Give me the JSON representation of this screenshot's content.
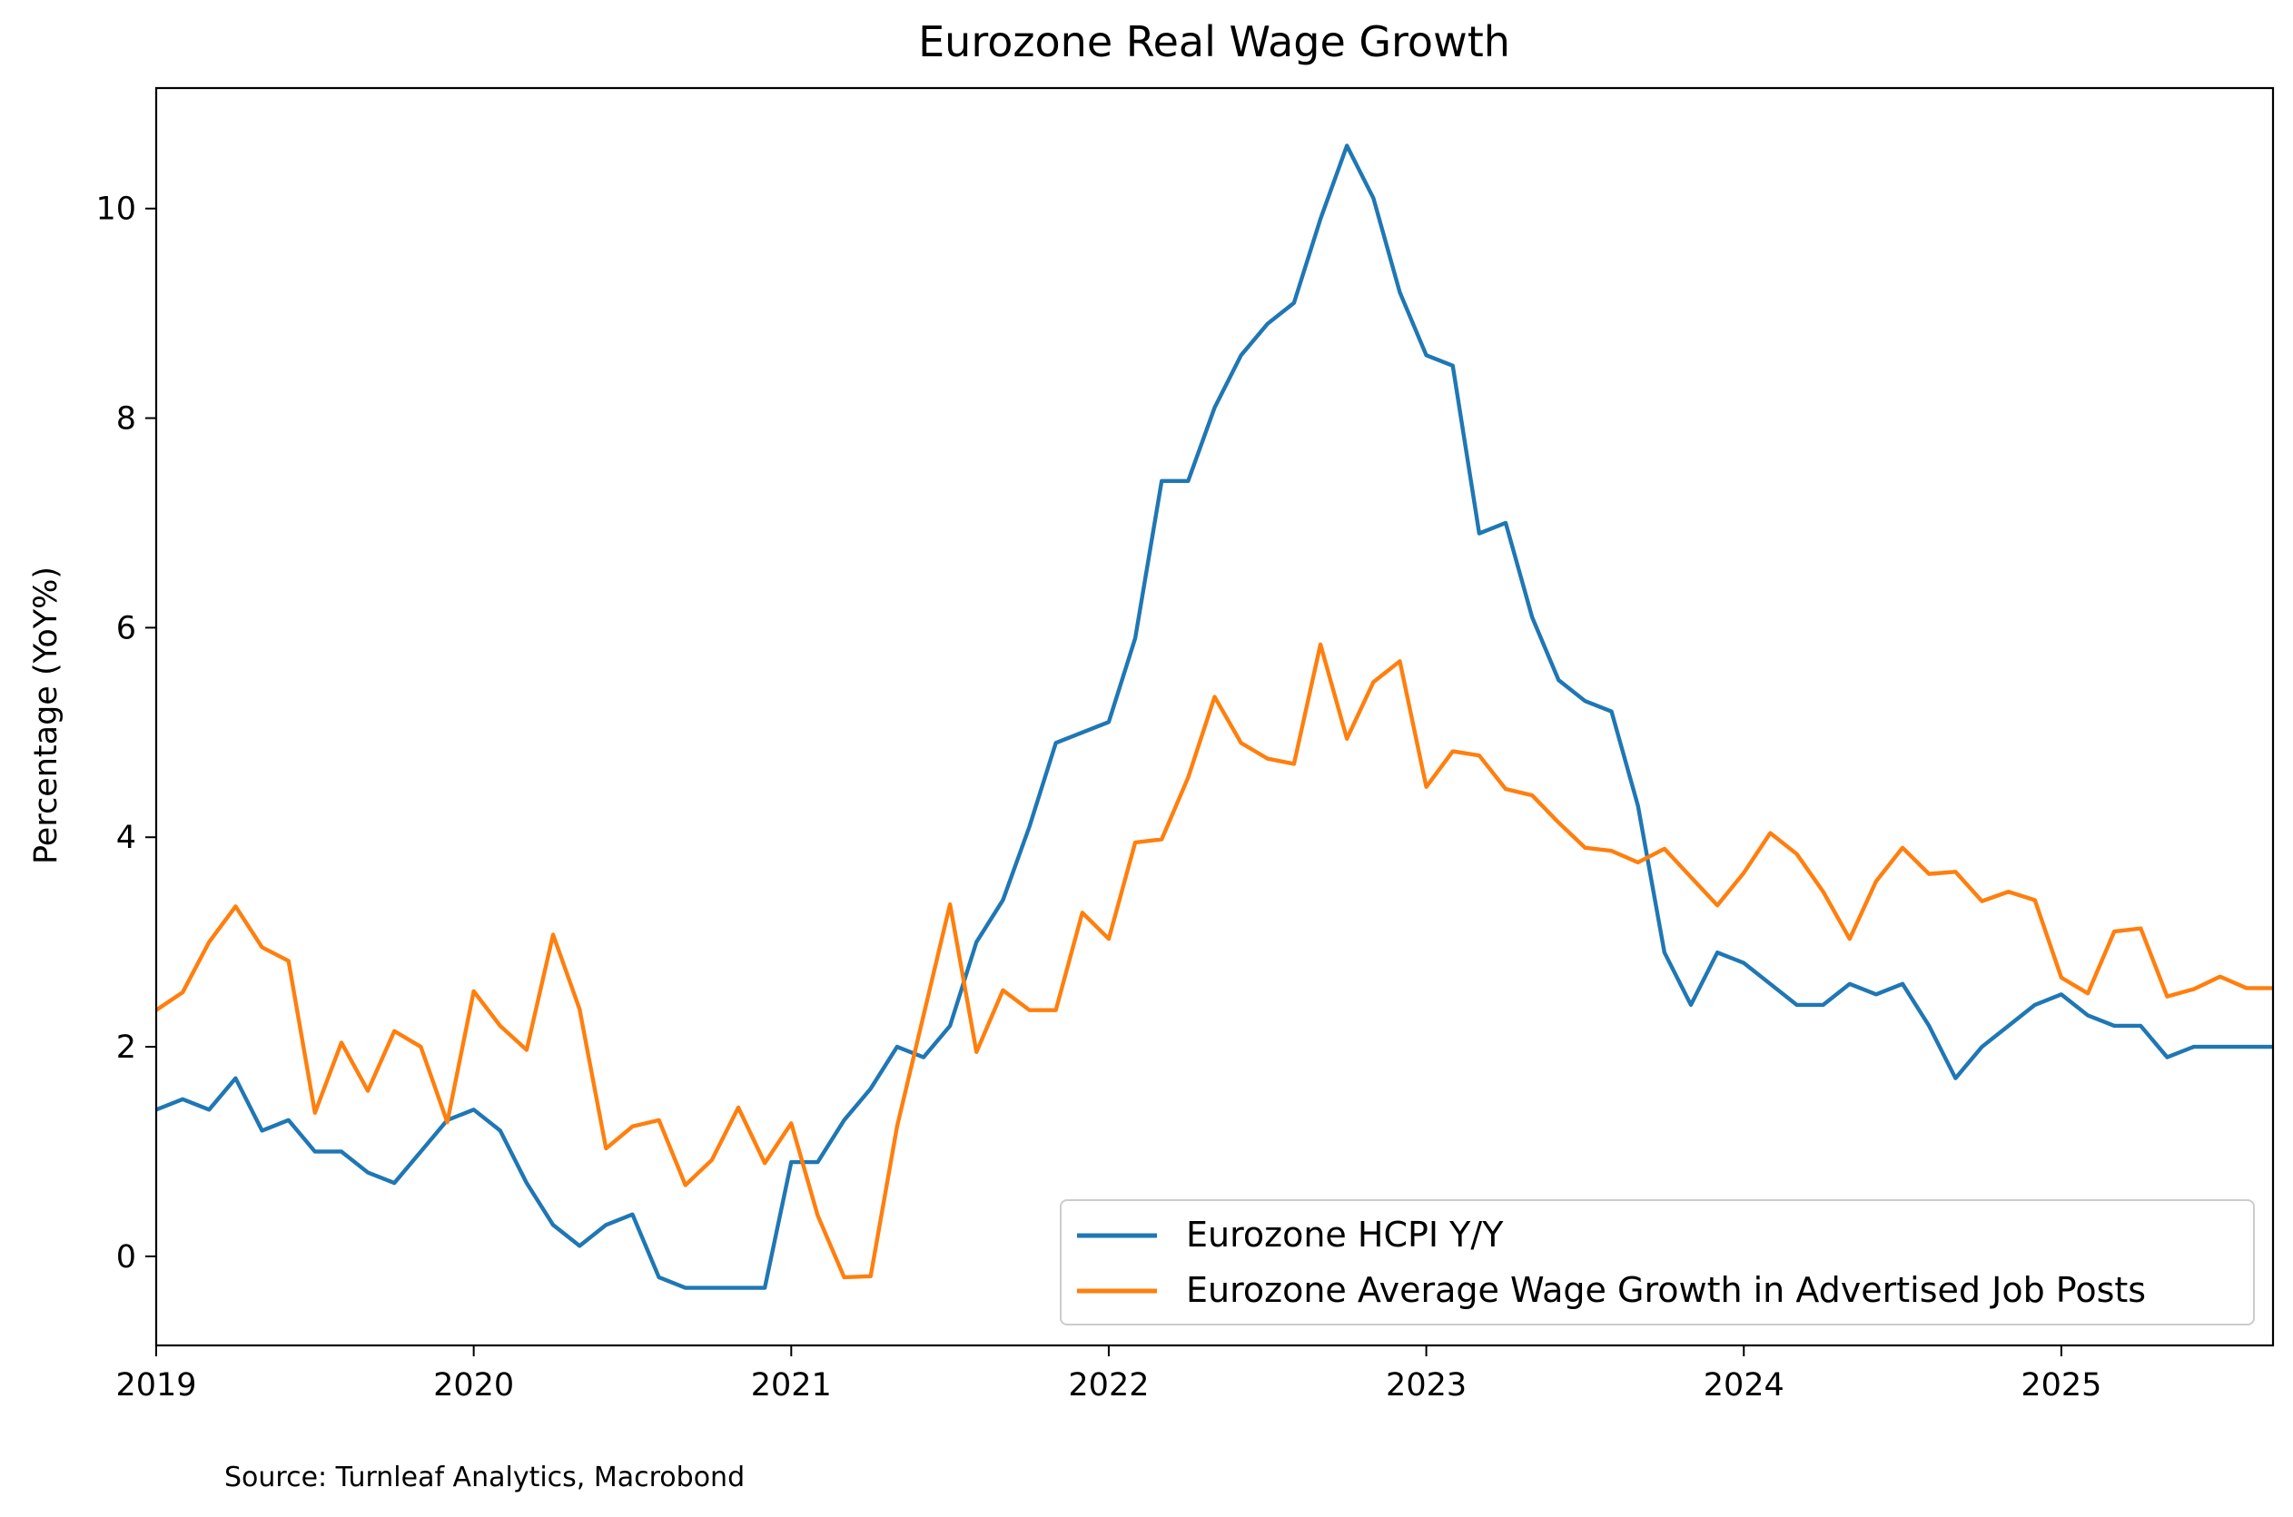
{
  "chart_data": {
    "type": "line",
    "title": "Eurozone Real Wage Growth",
    "xlabel": "",
    "ylabel": "Percentage (YoY%)",
    "xlim": [
      "2019-01-01",
      "2025-09-01"
    ],
    "ylim": [
      -0.85,
      11.15
    ],
    "x_ticks": [
      "2019",
      "2020",
      "2021",
      "2022",
      "2023",
      "2024",
      "2025"
    ],
    "y_ticks": [
      "0",
      "2",
      "4",
      "6",
      "8",
      "10"
    ],
    "y_tick_values": [
      0,
      2,
      4,
      6,
      8,
      10
    ],
    "grid": false,
    "legend_position": "lower right",
    "source": "Source: Turnleaf Analytics, Macrobond",
    "series": [
      {
        "name": "Eurozone HCPI Y/Y",
        "color": "#1f77b4",
        "x": [
          "2019-01",
          "2019-02",
          "2019-03",
          "2019-04",
          "2019-05",
          "2019-06",
          "2019-07",
          "2019-08",
          "2019-09",
          "2019-10",
          "2019-11",
          "2019-12",
          "2020-01",
          "2020-02",
          "2020-03",
          "2020-04",
          "2020-05",
          "2020-06",
          "2020-07",
          "2020-08",
          "2020-09",
          "2020-10",
          "2020-11",
          "2020-12",
          "2021-01",
          "2021-02",
          "2021-03",
          "2021-04",
          "2021-05",
          "2021-06",
          "2021-07",
          "2021-08",
          "2021-09",
          "2021-10",
          "2021-11",
          "2021-12",
          "2022-01",
          "2022-02",
          "2022-03",
          "2022-04",
          "2022-05",
          "2022-06",
          "2022-07",
          "2022-08",
          "2022-09",
          "2022-10",
          "2022-11",
          "2022-12",
          "2023-01",
          "2023-02",
          "2023-03",
          "2023-04",
          "2023-05",
          "2023-06",
          "2023-07",
          "2023-08",
          "2023-09",
          "2023-10",
          "2023-11",
          "2023-12",
          "2024-01",
          "2024-02",
          "2024-03",
          "2024-04",
          "2024-05",
          "2024-06",
          "2024-07",
          "2024-08",
          "2024-09",
          "2024-10",
          "2024-11",
          "2024-12",
          "2025-01",
          "2025-02",
          "2025-03",
          "2025-04",
          "2025-05",
          "2025-06",
          "2025-07",
          "2025-08",
          "2025-09"
        ],
        "values": [
          1.4,
          1.5,
          1.4,
          1.7,
          1.2,
          1.3,
          1.0,
          1.0,
          0.8,
          0.7,
          1.0,
          1.3,
          1.4,
          1.2,
          0.7,
          0.3,
          0.1,
          0.3,
          0.4,
          -0.2,
          -0.3,
          -0.3,
          -0.3,
          -0.3,
          0.9,
          0.9,
          1.3,
          1.6,
          2.0,
          1.9,
          2.2,
          3.0,
          3.4,
          4.1,
          4.9,
          5.0,
          5.1,
          5.9,
          7.4,
          7.4,
          8.1,
          8.6,
          8.9,
          9.1,
          9.9,
          10.6,
          10.1,
          9.2,
          8.6,
          8.5,
          6.9,
          7.0,
          6.1,
          5.5,
          5.3,
          5.2,
          4.3,
          2.9,
          2.4,
          2.9,
          2.8,
          2.6,
          2.4,
          2.4,
          2.6,
          2.5,
          2.6,
          2.2,
          1.7,
          2.0,
          2.2,
          2.4,
          2.5,
          2.3,
          2.2,
          2.2,
          1.9,
          2.0,
          2.0,
          2.0,
          2.0
        ]
      },
      {
        "name": "Eurozone Average Wage Growth in Advertised Job Posts",
        "color": "#ff7f0e",
        "x": [
          "2019-01",
          "2019-02",
          "2019-03",
          "2019-04",
          "2019-05",
          "2019-06",
          "2019-07",
          "2019-08",
          "2019-09",
          "2019-10",
          "2019-11",
          "2019-12",
          "2020-01",
          "2020-02",
          "2020-03",
          "2020-04",
          "2020-05",
          "2020-06",
          "2020-07",
          "2020-08",
          "2020-09",
          "2020-10",
          "2020-11",
          "2020-12",
          "2021-01",
          "2021-02",
          "2021-03",
          "2021-04",
          "2021-05",
          "2021-06",
          "2021-07",
          "2021-08",
          "2021-09",
          "2021-10",
          "2021-11",
          "2021-12",
          "2022-01",
          "2022-02",
          "2022-03",
          "2022-04",
          "2022-05",
          "2022-06",
          "2022-07",
          "2022-08",
          "2022-09",
          "2022-10",
          "2022-11",
          "2022-12",
          "2023-01",
          "2023-02",
          "2023-03",
          "2023-04",
          "2023-05",
          "2023-06",
          "2023-07",
          "2023-08",
          "2023-09",
          "2023-10",
          "2023-11",
          "2023-12",
          "2024-01",
          "2024-02",
          "2024-03",
          "2024-04",
          "2024-05",
          "2024-06",
          "2024-07",
          "2024-08",
          "2024-09",
          "2024-10",
          "2024-11",
          "2024-12",
          "2025-01",
          "2025-02",
          "2025-03",
          "2025-04",
          "2025-05",
          "2025-06",
          "2025-07",
          "2025-08",
          "2025-09"
        ],
        "values": [
          2.35,
          2.52,
          3.0,
          3.34,
          2.95,
          2.82,
          1.37,
          2.04,
          1.58,
          2.15,
          2.0,
          1.28,
          2.53,
          2.2,
          1.97,
          3.07,
          2.36,
          1.03,
          1.24,
          1.3,
          0.68,
          0.92,
          1.42,
          0.89,
          1.27,
          0.39,
          -0.2,
          -0.19,
          1.24,
          2.3,
          3.36,
          1.95,
          2.54,
          2.35,
          2.35,
          3.28,
          3.03,
          3.95,
          3.98,
          4.57,
          5.34,
          4.9,
          4.75,
          4.7,
          5.84,
          4.94,
          5.48,
          5.68,
          4.48,
          4.82,
          4.78,
          4.46,
          4.4,
          4.14,
          3.9,
          3.87,
          3.76,
          3.89,
          3.62,
          3.35,
          3.66,
          4.04,
          3.84,
          3.48,
          3.03,
          3.58,
          3.9,
          3.65,
          3.67,
          3.39,
          3.48,
          3.4,
          2.66,
          2.51,
          3.1,
          3.13,
          2.48,
          2.55,
          2.67,
          2.56,
          2.56
        ]
      }
    ]
  }
}
